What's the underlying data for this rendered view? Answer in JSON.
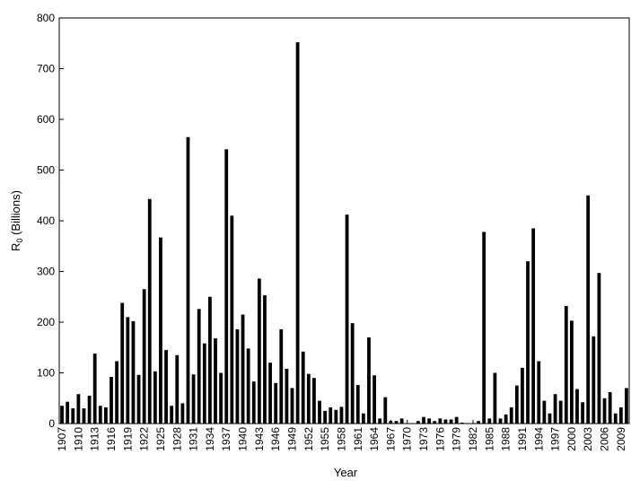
{
  "chart_data": {
    "type": "bar",
    "xlabel": "Year",
    "ylabel_main": "R",
    "ylabel_sub": "0",
    "ylabel_rest": " (Billions)",
    "ylim": [
      0,
      800
    ],
    "yticks": [
      0,
      100,
      200,
      300,
      400,
      500,
      600,
      700,
      800
    ],
    "xtick_labels": [
      "1907",
      "1910",
      "1913",
      "1916",
      "1919",
      "1922",
      "1925",
      "1928",
      "1931",
      "1934",
      "1937",
      "1940",
      "1943",
      "1946",
      "1949",
      "1952",
      "1955",
      "1958",
      "1961",
      "1964",
      "1967",
      "1970",
      "1973",
      "1976",
      "1979",
      "1982",
      "1985",
      "1988",
      "1991",
      "1994",
      "1997",
      "2000",
      "2003",
      "2006",
      "2009"
    ],
    "x_start": 1907,
    "x_end": 2009,
    "grid": false,
    "bar_color": "#000000",
    "values": [
      35,
      43,
      30,
      58,
      30,
      55,
      138,
      35,
      32,
      92,
      123,
      238,
      210,
      202,
      96,
      265,
      443,
      103,
      367,
      145,
      35,
      135,
      40,
      565,
      97,
      226,
      158,
      250,
      168,
      100,
      541,
      410,
      186,
      215,
      148,
      83,
      286,
      253,
      120,
      80,
      186,
      108,
      70,
      752,
      142,
      98,
      90,
      45,
      25,
      32,
      27,
      33,
      412,
      198,
      76,
      20,
      170,
      95,
      10,
      52,
      5,
      5,
      10,
      0,
      0,
      5,
      13,
      10,
      5,
      10,
      8,
      8,
      13,
      2,
      0,
      0,
      5,
      378,
      10,
      100,
      10,
      18,
      32,
      75,
      110,
      320,
      385,
      123,
      45,
      20,
      58,
      45,
      232,
      203,
      68,
      42,
      450,
      172,
      297,
      50,
      62,
      20,
      32,
      70
    ]
  }
}
